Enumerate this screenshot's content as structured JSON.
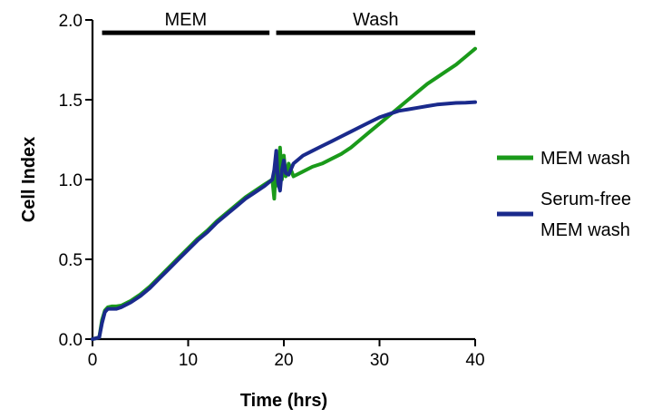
{
  "chart_data": {
    "type": "line",
    "title": "",
    "xlabel": "Time (hrs)",
    "ylabel": "Cell Index",
    "xlim": [
      0,
      40
    ],
    "ylim": [
      0,
      2.0
    ],
    "x_ticks": [
      {
        "value": 0,
        "label": "0"
      },
      {
        "value": 10,
        "label": "10"
      },
      {
        "value": 20,
        "label": "20"
      },
      {
        "value": 30,
        "label": "30"
      },
      {
        "value": 40,
        "label": "40"
      }
    ],
    "y_ticks": [
      {
        "value": 0,
        "label": "0.0"
      },
      {
        "value": 0.5,
        "label": "0.5"
      },
      {
        "value": 1.0,
        "label": "1.0"
      },
      {
        "value": 1.5,
        "label": "1.5"
      },
      {
        "value": 2.0,
        "label": "2.0"
      }
    ],
    "grid": false,
    "legend_position": "right",
    "phases": [
      {
        "label": "MEM",
        "start": 1.0,
        "end": 18.5,
        "y": 1.92
      },
      {
        "label": "Wash",
        "start": 19.2,
        "end": 40,
        "y": 1.92
      }
    ],
    "series": [
      {
        "name": "MEM wash",
        "legend_lines": [
          "MEM wash"
        ],
        "color": "#1a9a1a",
        "points": [
          [
            0,
            0
          ],
          [
            0.7,
            0.01
          ],
          [
            1.0,
            0.12
          ],
          [
            1.3,
            0.18
          ],
          [
            1.6,
            0.2
          ],
          [
            2.0,
            0.205
          ],
          [
            2.5,
            0.205
          ],
          [
            3,
            0.21
          ],
          [
            4,
            0.24
          ],
          [
            5,
            0.28
          ],
          [
            6,
            0.33
          ],
          [
            7,
            0.39
          ],
          [
            8,
            0.45
          ],
          [
            9,
            0.51
          ],
          [
            10,
            0.57
          ],
          [
            11,
            0.63
          ],
          [
            12,
            0.68
          ],
          [
            13,
            0.74
          ],
          [
            14,
            0.79
          ],
          [
            15,
            0.84
          ],
          [
            16,
            0.89
          ],
          [
            17,
            0.93
          ],
          [
            18,
            0.97
          ],
          [
            18.8,
            1.0
          ],
          [
            19.0,
            0.88
          ],
          [
            19.2,
            1.12
          ],
          [
            19.4,
            0.96
          ],
          [
            19.6,
            1.2
          ],
          [
            19.8,
            1.0
          ],
          [
            20.0,
            1.15
          ],
          [
            20.2,
            1.02
          ],
          [
            20.5,
            1.1
          ],
          [
            21,
            1.02
          ],
          [
            22,
            1.05
          ],
          [
            23,
            1.08
          ],
          [
            24,
            1.1
          ],
          [
            25,
            1.13
          ],
          [
            26,
            1.16
          ],
          [
            27,
            1.2
          ],
          [
            28,
            1.25
          ],
          [
            29,
            1.3
          ],
          [
            30,
            1.35
          ],
          [
            31,
            1.4
          ],
          [
            32,
            1.45
          ],
          [
            33,
            1.5
          ],
          [
            34,
            1.55
          ],
          [
            35,
            1.6
          ],
          [
            36,
            1.64
          ],
          [
            37,
            1.68
          ],
          [
            38,
            1.72
          ],
          [
            39,
            1.77
          ],
          [
            40,
            1.82
          ]
        ]
      },
      {
        "name": "Serum-free MEM wash",
        "legend_lines": [
          "Serum-free",
          "MEM wash"
        ],
        "color": "#1a2a8c",
        "points": [
          [
            0,
            0
          ],
          [
            0.7,
            0.01
          ],
          [
            1.0,
            0.1
          ],
          [
            1.3,
            0.17
          ],
          [
            1.6,
            0.19
          ],
          [
            2.0,
            0.19
          ],
          [
            2.5,
            0.19
          ],
          [
            3,
            0.2
          ],
          [
            4,
            0.23
          ],
          [
            5,
            0.27
          ],
          [
            6,
            0.32
          ],
          [
            7,
            0.38
          ],
          [
            8,
            0.44
          ],
          [
            9,
            0.5
          ],
          [
            10,
            0.56
          ],
          [
            11,
            0.62
          ],
          [
            12,
            0.67
          ],
          [
            13,
            0.73
          ],
          [
            14,
            0.78
          ],
          [
            15,
            0.83
          ],
          [
            16,
            0.88
          ],
          [
            17,
            0.92
          ],
          [
            18,
            0.96
          ],
          [
            18.8,
            1.0
          ],
          [
            19.0,
            1.06
          ],
          [
            19.2,
            1.18
          ],
          [
            19.4,
            0.98
          ],
          [
            19.6,
            0.93
          ],
          [
            19.8,
            1.06
          ],
          [
            20.0,
            1.12
          ],
          [
            20.2,
            1.04
          ],
          [
            20.5,
            1.03
          ],
          [
            21,
            1.1
          ],
          [
            22,
            1.15
          ],
          [
            23,
            1.18
          ],
          [
            24,
            1.21
          ],
          [
            25,
            1.24
          ],
          [
            26,
            1.27
          ],
          [
            27,
            1.3
          ],
          [
            28,
            1.33
          ],
          [
            29,
            1.36
          ],
          [
            30,
            1.39
          ],
          [
            31,
            1.41
          ],
          [
            32,
            1.43
          ],
          [
            33,
            1.44
          ],
          [
            34,
            1.45
          ],
          [
            35,
            1.46
          ],
          [
            36,
            1.47
          ],
          [
            37,
            1.475
          ],
          [
            38,
            1.48
          ],
          [
            39,
            1.482
          ],
          [
            40,
            1.485
          ]
        ]
      }
    ]
  }
}
